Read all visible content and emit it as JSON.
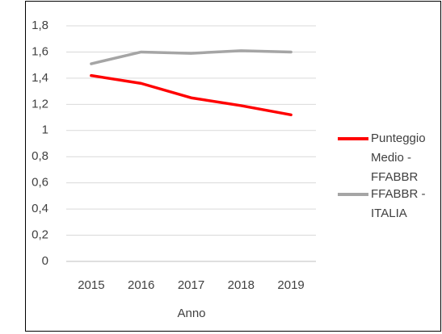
{
  "chart_data": {
    "type": "line",
    "x_label": "Anno",
    "categories": [
      "2015",
      "2016",
      "2017",
      "2018",
      "2019"
    ],
    "series": [
      {
        "name": "Punteggio Medio - FFABBR",
        "color": "#ff0000",
        "values": [
          1.42,
          1.36,
          1.25,
          1.19,
          1.12
        ]
      },
      {
        "name": "FFABBR - ITALIA",
        "color": "#a5a5a5",
        "values": [
          1.51,
          1.6,
          1.59,
          1.61,
          1.6
        ]
      }
    ],
    "ylim": [
      0,
      1.8
    ],
    "yticks": [
      0,
      {
        "value": 0.2,
        "label": "0,2"
      },
      {
        "value": 0.4,
        "label": "0,4"
      },
      {
        "value": 0.6,
        "label": "0,6"
      },
      {
        "value": 0.8,
        "label": "0,8"
      },
      1,
      {
        "value": 1.2,
        "label": "1,2"
      },
      {
        "value": 1.4,
        "label": "1,4"
      },
      {
        "value": 1.6,
        "label": "1,6"
      },
      {
        "value": 1.8,
        "label": "1,8"
      }
    ],
    "grid": true,
    "legend": "right"
  }
}
